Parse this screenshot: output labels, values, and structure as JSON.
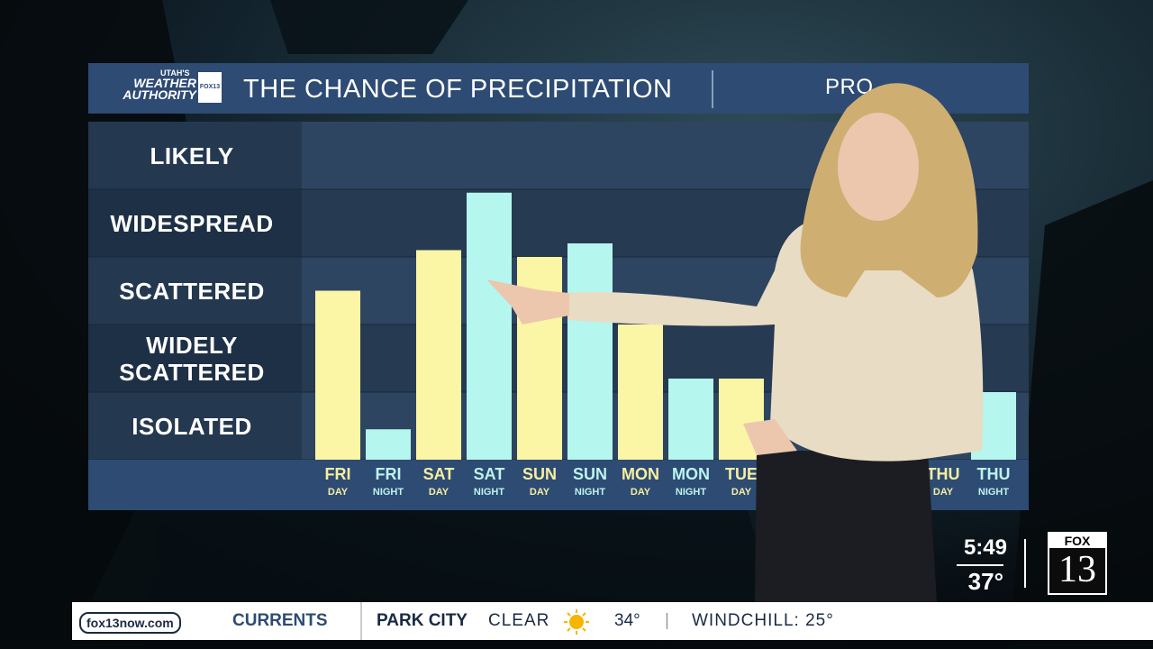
{
  "branding": {
    "logo_top": "UTAH'S",
    "logo_main": "WEATHER AUTHORITY",
    "logo_badge": "FOX13",
    "subtitle_fragment": "PRO"
  },
  "chart_data": {
    "type": "bar",
    "title": "THE CHANCE OF PRECIPITATION",
    "categories": [
      "FRI DAY",
      "FRI NIGHT",
      "SAT DAY",
      "SAT NIGHT",
      "SUN DAY",
      "SUN NIGHT",
      "MON DAY",
      "MON NIGHT",
      "TUE DAY",
      null,
      null,
      null,
      "THU DAY",
      "THU NIGHT"
    ],
    "values": [
      2.5,
      0.45,
      3.1,
      3.95,
      3.0,
      3.2,
      2.0,
      1.2,
      1.2,
      null,
      null,
      null,
      null,
      1.0
    ],
    "colors": [
      "#fbf5a6",
      "#b5f6ee",
      "#fbf5a6",
      "#b5f6ee",
      "#fbf5a6",
      "#b5f6ee",
      "#fbf5a6",
      "#b5f6ee",
      "#fbf5a6",
      "#b5f6ee",
      "#fbf5a6",
      "#b5f6ee",
      "#fbf5a6",
      "#b5f6ee"
    ],
    "ylim": [
      0,
      5
    ],
    "yticks": [
      {
        "value": 0.5,
        "label": "ISOLATED"
      },
      {
        "value": 1.5,
        "label": "WIDELY SCATTERED"
      },
      {
        "value": 2.5,
        "label": "SCATTERED"
      },
      {
        "value": 3.5,
        "label": "WIDESPREAD"
      },
      {
        "value": 4.5,
        "label": "LIKELY"
      }
    ]
  },
  "overlay": {
    "time": "5:49",
    "temp": "37°",
    "station_top": "FOX",
    "station_num": "13"
  },
  "ticker": {
    "site": "fox13now.com",
    "section": "CURRENTS",
    "location": "PARK CITY",
    "condition": "CLEAR",
    "temp": "34°",
    "separator": "|",
    "windchill": "WINDCHILL: 25°"
  }
}
